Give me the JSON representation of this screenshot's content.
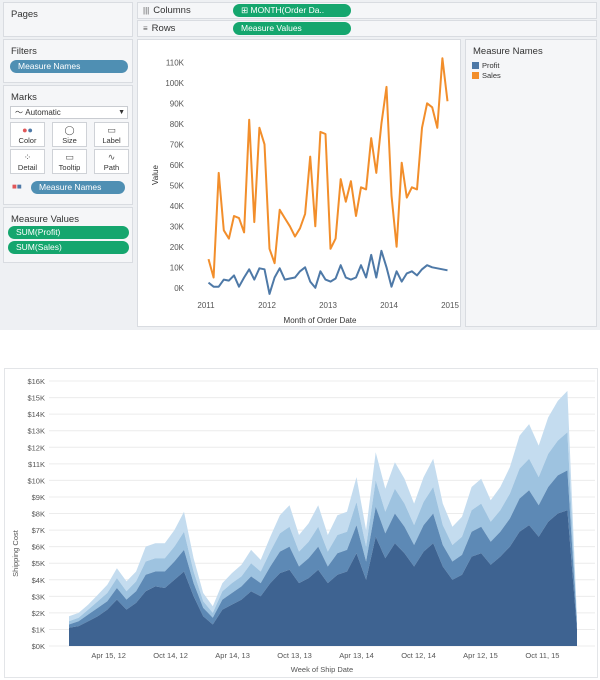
{
  "left_panel": {
    "pages_title": "Pages",
    "filters_title": "Filters",
    "filter_pill": "Measure Names",
    "marks_title": "Marks",
    "mark_type": "Automatic",
    "mark_buttons": [
      "Color",
      "Size",
      "Label",
      "Detail",
      "Tooltip",
      "Path"
    ],
    "marks_pill": "Measure Names",
    "measure_values_title": "Measure Values",
    "measure_values_pills": [
      "SUM(Profit)",
      "SUM(Sales)"
    ]
  },
  "shelves": {
    "columns_label": "Columns",
    "columns_pill": "MONTH(Order Da..",
    "rows_label": "Rows",
    "rows_pill": "Measure Values"
  },
  "legend": {
    "title": "Measure Names",
    "items": [
      {
        "name": "Profit",
        "color": "#4e79a7"
      },
      {
        "name": "Sales",
        "color": "#f28e2b"
      }
    ]
  },
  "colors": {
    "profit": "#4e79a7",
    "sales": "#f28e2b",
    "pill_green": "#15a66e",
    "pill_blue": "#4f8fb3",
    "area_dark": "#3e6391",
    "area_mid": "#5d89b5",
    "area_light1": "#9ec3e0",
    "area_light2": "#c4dcef"
  },
  "chart_data": [
    {
      "type": "line",
      "xlabel": "Month of Order Date",
      "ylabel": "Value",
      "x_ticks": [
        "2011",
        "2012",
        "2013",
        "2014",
        "2015"
      ],
      "y_ticks": [
        "0K",
        "10K",
        "20K",
        "30K",
        "40K",
        "50K",
        "60K",
        "70K",
        "80K",
        "90K",
        "100K",
        "110K"
      ],
      "ylim": [
        -5000,
        115000
      ],
      "grid": false,
      "legend_position": "right",
      "x": [
        "2011-01",
        "2011-02",
        "2011-03",
        "2011-04",
        "2011-05",
        "2011-06",
        "2011-07",
        "2011-08",
        "2011-09",
        "2011-10",
        "2011-11",
        "2011-12",
        "2012-01",
        "2012-02",
        "2012-03",
        "2012-04",
        "2012-05",
        "2012-06",
        "2012-07",
        "2012-08",
        "2012-09",
        "2012-10",
        "2012-11",
        "2012-12",
        "2013-01",
        "2013-02",
        "2013-03",
        "2013-04",
        "2013-05",
        "2013-06",
        "2013-07",
        "2013-08",
        "2013-09",
        "2013-10",
        "2013-11",
        "2013-12",
        "2014-01",
        "2014-02",
        "2014-03",
        "2014-04",
        "2014-05",
        "2014-06",
        "2014-07",
        "2014-08",
        "2014-09",
        "2014-10",
        "2014-11",
        "2014-12"
      ],
      "series": [
        {
          "name": "Sales",
          "values": [
            14000,
            5000,
            56000,
            28000,
            24000,
            35000,
            34000,
            27000,
            82000,
            32000,
            78000,
            70000,
            19000,
            12000,
            38000,
            34000,
            30000,
            25000,
            29000,
            36000,
            64000,
            30000,
            76000,
            75000,
            19000,
            24000,
            53000,
            42000,
            52000,
            35000,
            49000,
            48000,
            73000,
            56000,
            80000,
            98000,
            45000,
            20000,
            61000,
            44000,
            49000,
            48000,
            78000,
            90000,
            88000,
            78000,
            112000,
            91000
          ]
        },
        {
          "name": "Profit",
          "values": [
            2500,
            500,
            500,
            4000,
            3500,
            6000,
            500,
            5000,
            9000,
            4000,
            9500,
            9000,
            -3000,
            5000,
            9500,
            4000,
            4500,
            5000,
            8000,
            10000,
            3000,
            0,
            8000,
            4000,
            3000,
            4500,
            11000,
            5000,
            4000,
            5000,
            11000,
            5000,
            16000,
            5000,
            18000,
            10000,
            500,
            8000,
            3000,
            7000,
            8000,
            6000,
            9000,
            11000,
            10000,
            9500,
            9000,
            8500
          ]
        }
      ]
    },
    {
      "type": "area",
      "xlabel": "Week of Ship Date",
      "ylabel": "Shipping Cost",
      "x_ticks": [
        "Apr 15, 12",
        "Oct 14, 12",
        "Apr 14, 13",
        "Oct 13, 13",
        "Apr 13, 14",
        "Oct 12, 14",
        "Apr 12, 15",
        "Oct 11, 15"
      ],
      "y_ticks": [
        "$0K",
        "$1K",
        "$2K",
        "$3K",
        "$4K",
        "$5K",
        "$6K",
        "$7K",
        "$8K",
        "$9K",
        "$10K",
        "$11K",
        "$12K",
        "$13K",
        "$14K",
        "$15K",
        "$16K"
      ],
      "ylim": [
        0,
        16000
      ],
      "grid": true,
      "stacked": true,
      "series": [
        {
          "values": [
            1100,
            1200,
            1500,
            1800,
            2200,
            2800,
            2200,
            2600,
            3300,
            3600,
            3500,
            4000,
            4500,
            3000,
            1800,
            1300,
            2200,
            2500,
            2800,
            3300,
            3000,
            3800,
            4400,
            4600,
            3800,
            4100,
            4600,
            3800,
            4300,
            4500,
            5600,
            4000,
            6600,
            5300,
            6200,
            5600,
            4800,
            5700,
            6200,
            4800,
            4000,
            4300,
            5400,
            5600,
            4900,
            5400,
            6000,
            6900,
            7300,
            6600,
            7500,
            8000,
            8200,
            1000
          ]
        },
        {
          "values": [
            200,
            300,
            400,
            500,
            500,
            700,
            600,
            700,
            1000,
            900,
            1000,
            1100,
            1300,
            800,
            500,
            400,
            600,
            700,
            800,
            900,
            800,
            1000,
            1300,
            1400,
            1000,
            1200,
            1400,
            1000,
            1300,
            1300,
            1700,
            1100,
            1800,
            1500,
            1800,
            1600,
            1300,
            1600,
            1800,
            1300,
            1100,
            1200,
            1500,
            1600,
            1400,
            1500,
            1700,
            2000,
            2100,
            1900,
            2100,
            2300,
            2400,
            300
          ]
        },
        {
          "values": [
            200,
            200,
            300,
            400,
            500,
            600,
            500,
            600,
            800,
            800,
            800,
            900,
            1100,
            700,
            400,
            300,
            500,
            600,
            600,
            800,
            700,
            900,
            1100,
            1200,
            900,
            1000,
            1200,
            900,
            1100,
            1100,
            1400,
            900,
            1600,
            1300,
            1500,
            1400,
            1200,
            1400,
            1600,
            1200,
            1000,
            1100,
            1300,
            1400,
            1200,
            1300,
            1500,
            1800,
            1900,
            1700,
            2000,
            2100,
            2300,
            200
          ]
        },
        {
          "values": [
            300,
            300,
            300,
            400,
            500,
            600,
            600,
            600,
            900,
            900,
            900,
            1000,
            1200,
            800,
            500,
            400,
            500,
            600,
            700,
            800,
            700,
            900,
            1100,
            1300,
            1000,
            1100,
            1300,
            1000,
            1200,
            1200,
            1500,
            1000,
            1700,
            1400,
            1600,
            1500,
            1300,
            1500,
            1700,
            1300,
            1100,
            1200,
            1400,
            1500,
            1300,
            1400,
            1600,
            2000,
            2100,
            1900,
            2200,
            2400,
            2500,
            200
          ]
        }
      ]
    }
  ]
}
